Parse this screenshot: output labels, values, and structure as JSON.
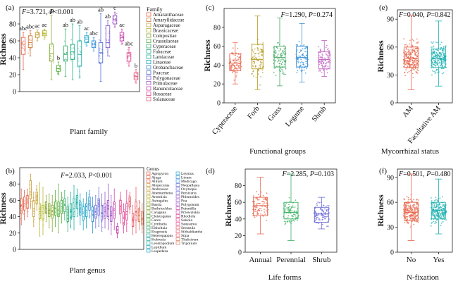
{
  "figure": {
    "caption": ""
  },
  "palette": [
    "#e8644a",
    "#c8a040",
    "#b5b52a",
    "#88a830",
    "#58b040",
    "#38b070",
    "#20b0a0",
    "#20a8c8",
    "#3890d8",
    "#7070d8",
    "#a058c8",
    "#c848b0",
    "#e04890",
    "#e86070",
    "#e07858"
  ],
  "chart_data": [
    {
      "panel": "(a)",
      "type": "box",
      "title": "",
      "xlabel": "Plant family",
      "ylabel": "Richness",
      "ylim": [
        0,
        100
      ],
      "yticks": [
        0,
        20,
        40,
        60,
        80
      ],
      "stats": "F=3.721, P<0.001",
      "show_xticks": false,
      "legend_title": "Family",
      "legend": [
        "Amaranthaceae",
        "Amaryllidaceae",
        "Asparagaceae",
        "Brassicaceae",
        "Compositae",
        "Crassulaceae",
        "Cyperaceae",
        "Fabaceae",
        "Lamiaceae",
        "Linaceae",
        "Orobanchaceae",
        "Poaceae",
        "Polygonaceae",
        "Primulaceae",
        "Ranunculaceae",
        "Rosaceae",
        "Solanaceae"
      ],
      "series": [
        {
          "name": "Amaranthaceae",
          "q1": 44,
          "median": 56,
          "q3": 64,
          "whislo": 26,
          "whishi": 70,
          "letters": "abc",
          "color": "#e8644a"
        },
        {
          "name": "Amaryllidaceae",
          "q1": 52,
          "median": 58,
          "q3": 66,
          "whislo": 42,
          "whishi": 72,
          "letters": "abc",
          "color": "#d07838"
        },
        {
          "name": "Asparagaceae",
          "q1": 64,
          "median": 67,
          "q3": 70,
          "whislo": 60,
          "whishi": 73,
          "letters": "ac",
          "color": "#c8a040"
        },
        {
          "name": "Brassicaceae",
          "q1": 66,
          "median": 69,
          "q3": 72,
          "whislo": 62,
          "whishi": 74,
          "letters": "ac",
          "color": "#b5b52a"
        },
        {
          "name": "Compositae",
          "q1": 36,
          "median": 45,
          "q3": 56,
          "whislo": 14,
          "whishi": 90,
          "letters": "ab",
          "color": "#88a830"
        },
        {
          "name": "Crassulaceae",
          "q1": 24,
          "median": 27,
          "q3": 31,
          "whislo": 20,
          "whishi": 35,
          "letters": "b",
          "color": "#58b040"
        },
        {
          "name": "Cyperaceae",
          "q1": 36,
          "median": 44,
          "q3": 54,
          "whislo": 18,
          "whishi": 74,
          "letters": "ab",
          "color": "#38b070"
        },
        {
          "name": "Fabaceae",
          "q1": 38,
          "median": 47,
          "q3": 56,
          "whislo": 14,
          "whishi": 80,
          "letters": "ab",
          "color": "#20b080"
        },
        {
          "name": "Lamiaceae",
          "q1": 30,
          "median": 44,
          "q3": 60,
          "whislo": 16,
          "whishi": 78,
          "letters": "ab",
          "color": "#20b0a0"
        },
        {
          "name": "Linaceae",
          "q1": 58,
          "median": 62,
          "q3": 66,
          "whislo": 54,
          "whishi": 70,
          "letters": "ac",
          "color": "#20a8c8"
        },
        {
          "name": "Orobanchaceae",
          "q1": 52,
          "median": 56,
          "q3": 60,
          "whislo": 48,
          "whishi": 64,
          "letters": "abc",
          "color": "#3890d8"
        },
        {
          "name": "Poaceae",
          "q1": 34,
          "median": 46,
          "q3": 58,
          "whislo": 12,
          "whishi": 92,
          "letters": "ab",
          "color": "#5070d8"
        },
        {
          "name": "Polygonaceae",
          "q1": 52,
          "median": 58,
          "q3": 78,
          "whislo": 42,
          "whishi": 84,
          "letters": "ab",
          "color": "#8060d8"
        },
        {
          "name": "Primulaceae",
          "q1": 80,
          "median": 85,
          "q3": 90,
          "whislo": 76,
          "whishi": 94,
          "letters": "c",
          "color": "#a058c8"
        },
        {
          "name": "Ranunculaceae",
          "q1": 60,
          "median": 64,
          "q3": 70,
          "whislo": 56,
          "whishi": 74,
          "letters": "ac",
          "color": "#c848b0"
        },
        {
          "name": "Rosaceae",
          "q1": 36,
          "median": 42,
          "q3": 46,
          "whislo": 30,
          "whishi": 52,
          "letters": "abc",
          "color": "#e04890"
        },
        {
          "name": "Solanaceae",
          "q1": 14,
          "median": 18,
          "q3": 22,
          "whislo": 10,
          "whishi": 26,
          "letters": "b",
          "color": "#e86080"
        }
      ]
    },
    {
      "panel": "(b)",
      "type": "box",
      "title": "",
      "xlabel": "Plant genus",
      "ylabel": "Richness",
      "ylim": [
        0,
        100
      ],
      "yticks": [
        0,
        20,
        40,
        60,
        80
      ],
      "stats": "F=2.033, P<0.001",
      "show_xticks": false,
      "legend_title": "Genus",
      "legend": [
        "Agropyron",
        "Ajuga",
        "Allium",
        "Alopecurus",
        "Androsace",
        "Anemarrhena",
        "Artemisia",
        "Astragalus",
        "Bassia",
        "Bothriochloa",
        "Caragana",
        "Cleistogenes",
        "Carex",
        "Cymbaria",
        "Elsholtzia",
        "Eragrostis",
        "Heteropappus",
        "Kobresia",
        "Leontopodium",
        "Lepidium",
        "Lespedeza",
        "Leymus",
        "Linum",
        "Medicago",
        "Neopallasia",
        "Oxytropis",
        "Persicaria",
        "Phlomoides",
        "Poa",
        "Polygonum",
        "Potentilla",
        "Przewalskia",
        "Rhodiola",
        "Salsola",
        "Saussurea",
        "Serratula",
        "Sibbaldianthe",
        "Stipa",
        "Thalictrum",
        "Tripolium"
      ],
      "series": [
        {
          "name": "Agropyron",
          "q1": 44,
          "median": 54,
          "q3": 62,
          "whislo": 30,
          "whishi": 74
        },
        {
          "name": "Ajuga",
          "q1": 48,
          "median": 56,
          "q3": 64,
          "whislo": 36,
          "whishi": 72
        },
        {
          "name": "Allium",
          "q1": 50,
          "median": 58,
          "q3": 66,
          "whislo": 40,
          "whishi": 74
        },
        {
          "name": "Alopecurus",
          "q1": 62,
          "median": 70,
          "q3": 84,
          "whislo": 50,
          "whishi": 92
        },
        {
          "name": "Androsace",
          "q1": 40,
          "median": 50,
          "q3": 60,
          "whislo": 28,
          "whishi": 70
        },
        {
          "name": "Anemarrhena",
          "q1": 56,
          "median": 64,
          "q3": 70,
          "whislo": 48,
          "whishi": 78
        },
        {
          "name": "Artemisia",
          "q1": 38,
          "median": 46,
          "q3": 56,
          "whislo": 16,
          "whishi": 82
        },
        {
          "name": "Astragalus",
          "q1": 36,
          "median": 44,
          "q3": 54,
          "whislo": 18,
          "whishi": 76
        },
        {
          "name": "Bassia",
          "q1": 44,
          "median": 50,
          "q3": 58,
          "whislo": 34,
          "whishi": 66
        },
        {
          "name": "Bothriochloa",
          "q1": 40,
          "median": 48,
          "q3": 56,
          "whislo": 26,
          "whishi": 68
        },
        {
          "name": "Caragana",
          "q1": 38,
          "median": 46,
          "q3": 54,
          "whislo": 22,
          "whishi": 66
        },
        {
          "name": "Cleistogenes",
          "q1": 42,
          "median": 50,
          "q3": 58,
          "whislo": 28,
          "whishi": 72
        },
        {
          "name": "Carex",
          "q1": 40,
          "median": 48,
          "q3": 58,
          "whislo": 20,
          "whishi": 80
        },
        {
          "name": "Cymbaria",
          "q1": 44,
          "median": 52,
          "q3": 60,
          "whislo": 32,
          "whishi": 70
        },
        {
          "name": "Elsholtzia",
          "q1": 46,
          "median": 54,
          "q3": 62,
          "whislo": 36,
          "whishi": 72
        },
        {
          "name": "Eragrostis",
          "q1": 34,
          "median": 42,
          "q3": 52,
          "whislo": 22,
          "whishi": 64
        },
        {
          "name": "Heteropappus",
          "q1": 38,
          "median": 46,
          "q3": 56,
          "whislo": 26,
          "whishi": 70
        },
        {
          "name": "Kobresia",
          "q1": 40,
          "median": 50,
          "q3": 62,
          "whislo": 24,
          "whishi": 78
        },
        {
          "name": "Leontopodium",
          "q1": 50,
          "median": 58,
          "q3": 66,
          "whislo": 40,
          "whishi": 74
        },
        {
          "name": "Lepidium",
          "q1": 42,
          "median": 50,
          "q3": 58,
          "whislo": 30,
          "whishi": 68
        },
        {
          "name": "Lespedeza",
          "q1": 36,
          "median": 44,
          "q3": 52,
          "whislo": 24,
          "whishi": 62
        },
        {
          "name": "Leymus",
          "q1": 40,
          "median": 48,
          "q3": 56,
          "whislo": 26,
          "whishi": 70
        },
        {
          "name": "Linum",
          "q1": 48,
          "median": 56,
          "q3": 64,
          "whislo": 38,
          "whishi": 72
        },
        {
          "name": "Medicago",
          "q1": 34,
          "median": 42,
          "q3": 52,
          "whislo": 20,
          "whishi": 64
        },
        {
          "name": "Neopallasia",
          "q1": 38,
          "median": 46,
          "q3": 54,
          "whislo": 26,
          "whishi": 66
        },
        {
          "name": "Oxytropis",
          "q1": 42,
          "median": 52,
          "q3": 62,
          "whislo": 28,
          "whishi": 76
        },
        {
          "name": "Persicaria",
          "q1": 36,
          "median": 44,
          "q3": 54,
          "whislo": 22,
          "whishi": 68
        },
        {
          "name": "Phlomoides",
          "q1": 38,
          "median": 46,
          "q3": 56,
          "whislo": 26,
          "whishi": 70
        },
        {
          "name": "Poa",
          "q1": 40,
          "median": 50,
          "q3": 60,
          "whislo": 24,
          "whishi": 80
        },
        {
          "name": "Polygonum",
          "q1": 34,
          "median": 42,
          "q3": 52,
          "whislo": 18,
          "whishi": 66
        },
        {
          "name": "Potentilla",
          "q1": 38,
          "median": 48,
          "q3": 58,
          "whislo": 24,
          "whishi": 74
        },
        {
          "name": "Przewalskia",
          "q1": 20,
          "median": 24,
          "q3": 28,
          "whislo": 14,
          "whishi": 32
        },
        {
          "name": "Rhodiola",
          "q1": 44,
          "median": 52,
          "q3": 60,
          "whislo": 32,
          "whishi": 70
        },
        {
          "name": "Salsola",
          "q1": 30,
          "median": 38,
          "q3": 46,
          "whislo": 20,
          "whishi": 56
        },
        {
          "name": "Saussurea",
          "q1": 36,
          "median": 46,
          "q3": 56,
          "whislo": 22,
          "whishi": 72
        },
        {
          "name": "Serratula",
          "q1": 52,
          "median": 58,
          "q3": 64,
          "whislo": 44,
          "whishi": 70
        },
        {
          "name": "Sibbaldianthe",
          "q1": 28,
          "median": 36,
          "q3": 44,
          "whislo": 18,
          "whishi": 54
        },
        {
          "name": "Stipa",
          "q1": 36,
          "median": 46,
          "q3": 58,
          "whislo": 20,
          "whishi": 76
        },
        {
          "name": "Thalictrum",
          "q1": 34,
          "median": 42,
          "q3": 50,
          "whislo": 24,
          "whishi": 60
        },
        {
          "name": "Tripolium",
          "q1": 30,
          "median": 38,
          "q3": 46,
          "whislo": 20,
          "whishi": 56
        }
      ]
    },
    {
      "panel": "(c)",
      "type": "box",
      "title": "",
      "xlabel": "Functional groups",
      "ylabel": "Richness",
      "ylim": [
        0,
        100
      ],
      "yticks": [
        0,
        20,
        40,
        60,
        80
      ],
      "stats": "F=1.290, P=0.274",
      "show_xticks": true,
      "rotate_xticks": true,
      "series": [
        {
          "name": "Cyperaceae",
          "q1": 34,
          "median": 42,
          "q3": 52,
          "whislo": 20,
          "whishi": 64,
          "color": "#e8644a"
        },
        {
          "name": "Forb",
          "q1": 36,
          "median": 46,
          "q3": 62,
          "whislo": 14,
          "whishi": 92,
          "color": "#b59a20"
        },
        {
          "name": "Grass",
          "q1": 38,
          "median": 48,
          "q3": 60,
          "whislo": 18,
          "whishi": 90,
          "color": "#40a860"
        },
        {
          "name": "Legume",
          "q1": 38,
          "median": 48,
          "q3": 60,
          "whislo": 22,
          "whishi": 84,
          "color": "#3890d8"
        },
        {
          "name": "Shrub",
          "q1": 36,
          "median": 46,
          "q3": 54,
          "whislo": 28,
          "whishi": 66,
          "color": "#c060c0"
        }
      ]
    },
    {
      "panel": "(d)",
      "type": "box",
      "title": "",
      "xlabel": "Life forms",
      "ylabel": "Richness",
      "ylim": [
        0,
        100
      ],
      "yticks": [
        0,
        20,
        40,
        60,
        80
      ],
      "stats": "F=2.285, P=0.103",
      "show_xticks": true,
      "rotate_xticks": false,
      "series": [
        {
          "name": "Annual",
          "q1": 44,
          "median": 56,
          "q3": 66,
          "whislo": 22,
          "whishi": 90,
          "color": "#e8644a"
        },
        {
          "name": "Perennial",
          "q1": 40,
          "median": 48,
          "q3": 60,
          "whislo": 14,
          "whishi": 94,
          "color": "#38b060"
        },
        {
          "name": "Shrub",
          "q1": 36,
          "median": 46,
          "q3": 54,
          "whislo": 28,
          "whishi": 66,
          "color": "#6a6ad8"
        }
      ]
    },
    {
      "panel": "(e)",
      "type": "box",
      "title": "",
      "xlabel": "Mycorrhizal status",
      "ylabel": "Richness",
      "ylim": [
        0,
        100
      ],
      "yticks": [
        0,
        30,
        60,
        90
      ],
      "stats": "F=0.040, P=0.842",
      "show_xticks": true,
      "rotate_xticks": true,
      "series": [
        {
          "name": "AM",
          "q1": 38,
          "median": 48,
          "q3": 60,
          "whislo": 14,
          "whishi": 94,
          "color": "#e8644a"
        },
        {
          "name": "Facultative AM",
          "q1": 38,
          "median": 48,
          "q3": 58,
          "whislo": 18,
          "whishi": 88,
          "color": "#20b0b0"
        }
      ]
    },
    {
      "panel": "(f)",
      "type": "box",
      "title": "",
      "xlabel": "N-fixation",
      "ylabel": "Richness",
      "ylim": [
        0,
        100
      ],
      "yticks": [
        0,
        30,
        60,
        90
      ],
      "stats": "F=0.501, P=0.480",
      "show_xticks": true,
      "rotate_xticks": false,
      "series": [
        {
          "name": "No",
          "q1": 38,
          "median": 48,
          "q3": 60,
          "whislo": 14,
          "whishi": 94,
          "color": "#e8644a"
        },
        {
          "name": "Yes",
          "q1": 40,
          "median": 50,
          "q3": 60,
          "whislo": 22,
          "whishi": 88,
          "color": "#20b0b0"
        }
      ]
    }
  ]
}
